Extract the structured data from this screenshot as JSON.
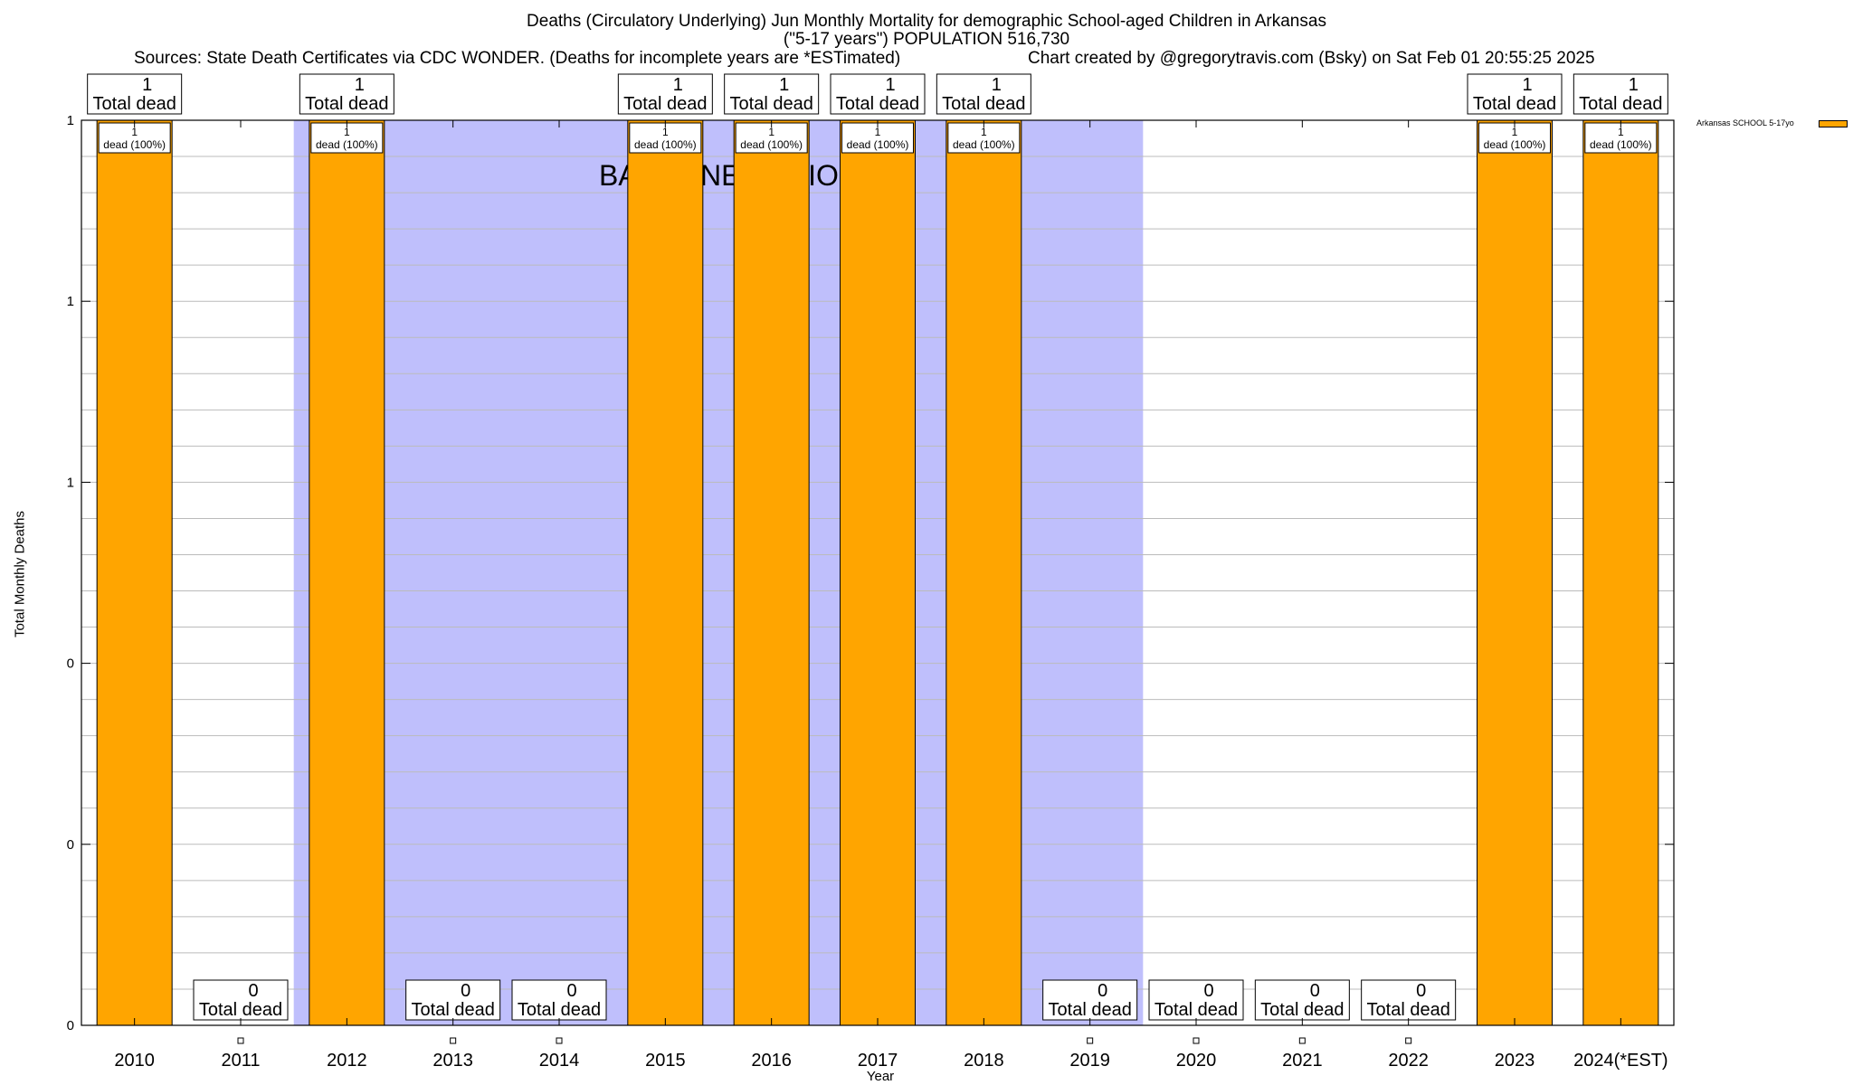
{
  "header": {
    "title_line1": "Deaths (Circulatory Underlying) Jun Monthly Mortality for demographic School-aged Children in Arkansas",
    "title_line2": "(\"5-17 years\") POPULATION 516,730",
    "sources": "Sources: State Death Certificates via CDC WONDER. (Deaths for incomplete years are *ESTimated)",
    "credit": "Chart created by @gregorytravis.com (Bsky) on Sat Feb 01 20:55:25 2025"
  },
  "colors": {
    "bar": "#ffa500",
    "baseline": "#bfbffc",
    "grid": "#bbbbbb"
  },
  "chart_data": {
    "type": "bar",
    "xlabel": "Year",
    "ylabel": "Total Monthly Deaths",
    "ylim": [
      0,
      1
    ],
    "y_tick_labels": [
      "0",
      "0",
      "0",
      "1",
      "1",
      "1"
    ],
    "grid": true,
    "legend_placement": "top-right",
    "annotation": "BASELINE PERIOD",
    "baseline_period": [
      "2012",
      "2019"
    ],
    "categories": [
      "2010",
      "2011",
      "2012",
      "2013",
      "2014",
      "2015",
      "2016",
      "2017",
      "2018",
      "2019",
      "2020",
      "2021",
      "2022",
      "2023",
      "2024(*EST)"
    ],
    "series": [
      {
        "name": "Arkansas SCHOOL 5-17yo",
        "values": [
          1,
          0,
          1,
          0,
          0,
          1,
          1,
          1,
          1,
          0,
          0,
          0,
          0,
          1,
          1
        ]
      }
    ],
    "total_label_suffix": "Total dead",
    "bar_label_suffix": "dead (100%)"
  }
}
